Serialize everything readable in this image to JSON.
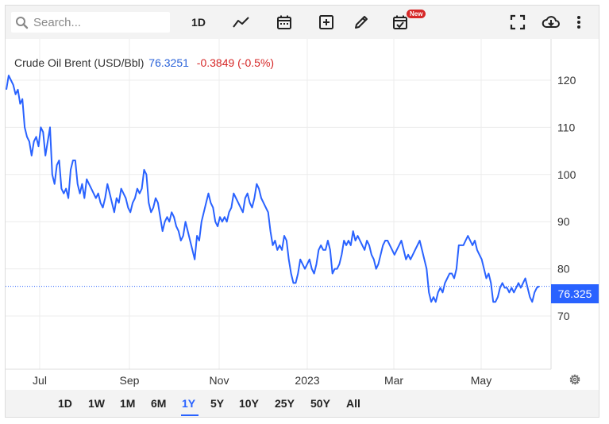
{
  "toolbar": {
    "search_placeholder": "Search...",
    "interval_label": "1D",
    "new_badge": "New",
    "icons": [
      "search-icon",
      "line-chart-icon",
      "calendar-icon",
      "add-indicator-icon",
      "draw-pencil-icon",
      "calendar-check-icon",
      "fullscreen-icon",
      "download-cloud-icon",
      "more-vertical-icon"
    ]
  },
  "legend": {
    "name": "Crude Oil Brent (USD/Bbl)",
    "price": "76.3251",
    "change": "-0.3849 (-0.5%)"
  },
  "last_price_label": "76.325",
  "colors": {
    "line": "#2962ff",
    "price_text": "#2962d9",
    "change_text": "#d62828",
    "active_range": "#2962ff"
  },
  "ranges": [
    "1D",
    "1W",
    "1M",
    "6M",
    "1Y",
    "5Y",
    "10Y",
    "25Y",
    "50Y",
    "All"
  ],
  "active_range": "1Y",
  "chart_data": {
    "type": "line",
    "title": "Crude Oil Brent (USD/Bbl)",
    "xlabel": "",
    "ylabel": "",
    "ylim": [
      60,
      127
    ],
    "yticks": [
      70,
      80,
      90,
      100,
      110,
      120
    ],
    "xticks": [
      "Jul",
      "Sep",
      "Nov",
      "2023",
      "Mar",
      "May"
    ],
    "grid": true,
    "series": [
      {
        "name": "Crude Oil Brent (USD/Bbl)",
        "x_range": [
          "2022-06-16",
          "2023-06-09"
        ],
        "values": [
          118,
          121,
          120,
          119,
          117,
          118,
          115,
          116,
          110,
          108,
          107,
          104,
          107,
          108,
          106,
          110,
          109,
          104,
          107,
          110,
          100,
          98,
          102,
          103,
          97,
          96,
          97,
          95,
          101,
          103,
          103,
          98,
          96,
          98,
          95,
          99,
          98,
          97,
          96,
          95,
          96,
          94,
          93,
          95,
          98,
          96,
          94,
          92,
          95,
          94,
          97,
          96,
          95,
          93,
          92,
          94,
          95,
          97,
          96,
          97,
          101,
          100,
          94,
          92,
          93,
          95,
          94,
          91,
          88,
          90,
          91,
          90,
          92,
          91,
          89,
          88,
          86,
          87,
          90,
          88,
          86,
          84,
          82,
          87,
          86,
          90,
          92,
          94,
          96,
          94,
          93,
          90,
          89,
          91,
          90,
          91,
          90,
          92,
          93,
          96,
          95,
          94,
          93,
          92,
          95,
          96,
          94,
          93,
          95,
          98,
          97,
          95,
          94,
          93,
          92,
          88,
          85,
          86,
          84,
          85,
          84,
          87,
          86,
          82,
          79,
          77,
          77,
          79,
          82,
          81,
          80,
          81,
          82,
          80,
          79,
          81,
          84,
          85,
          84,
          84,
          86,
          84,
          79,
          80,
          80,
          81,
          83,
          86,
          85,
          86,
          85,
          88,
          86,
          87,
          86,
          85,
          84,
          86,
          85,
          83,
          82,
          80,
          81,
          83,
          85,
          86,
          86,
          85,
          84,
          83,
          84,
          85,
          86,
          84,
          82,
          83,
          82,
          83,
          84,
          85,
          86,
          84,
          82,
          80,
          75,
          73,
          74,
          73,
          75,
          76,
          75,
          77,
          78,
          79,
          79,
          78,
          80,
          85,
          85,
          85,
          86,
          87,
          86,
          85,
          86,
          84,
          83,
          82,
          80,
          78,
          79,
          77,
          73,
          73,
          74,
          76,
          77,
          76,
          76,
          75,
          76,
          75,
          76,
          77,
          76,
          77,
          78,
          76,
          74,
          73,
          75,
          76,
          76.3
        ]
      }
    ]
  }
}
